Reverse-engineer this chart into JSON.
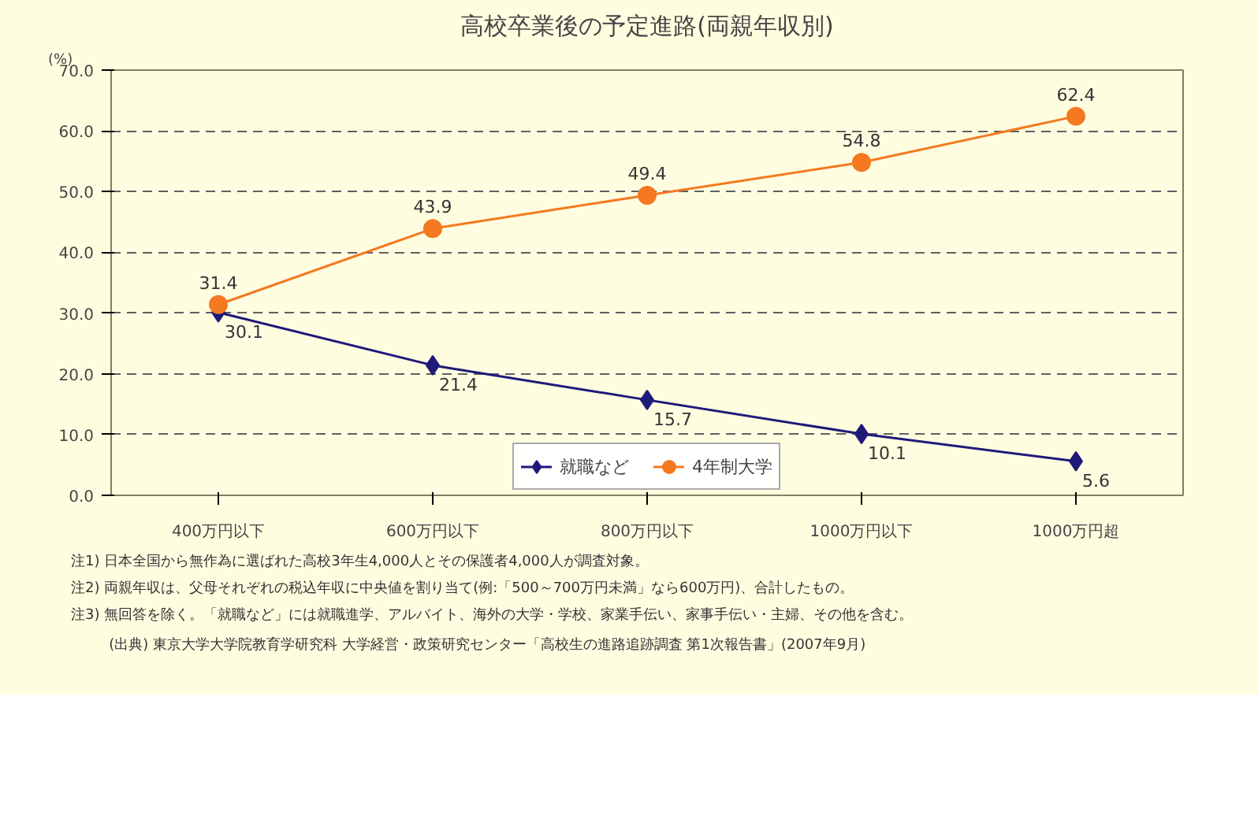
{
  "chart_data": {
    "type": "line",
    "title": "高校卒業後の予定進路(両親年収別)",
    "ylabel": "(%)",
    "categories": [
      "400万円以下",
      "600万円以下",
      "800万円以下",
      "1000万円以下",
      "1000万円超"
    ],
    "series": [
      {
        "name": "就職など",
        "color": "#1f1a7a",
        "marker": "diamond",
        "values": [
          30.1,
          21.4,
          15.7,
          10.1,
          5.6
        ]
      },
      {
        "name": "4年制大学",
        "color": "#f47920",
        "marker": "circle",
        "values": [
          31.4,
          43.9,
          49.4,
          54.8,
          62.4
        ]
      }
    ],
    "ylim": [
      0,
      70
    ],
    "yticks": [
      {
        "value": 0,
        "label": "0.0"
      },
      {
        "value": 10,
        "label": "10.0"
      },
      {
        "value": 20,
        "label": "20.0"
      },
      {
        "value": 30,
        "label": "30.0"
      },
      {
        "value": 40,
        "label": "40.0"
      },
      {
        "value": 50,
        "label": "50.0"
      },
      {
        "value": 60,
        "label": "60.0"
      },
      {
        "value": 70,
        "label": "70.0"
      }
    ],
    "grid": "y",
    "legend": "bottom",
    "data_labels": true,
    "annotations": [
      "注1) 日本全国から無作為に選ばれた高校3年生4,000人とその保護者4,000人が調査対象。",
      "注2) 両親年収は、父母それぞれの税込年収に中央値を割り当て(例:「500～700万円未満」なら600万円)、合計したもの。",
      "注3) 無回答を除く。「就職など」には就職進学、アルバイト、海外の大学・学校、家業手伝い、家事手伝い・主婦、その他を含む。",
      "(出典) 東京大学大学院教育学研究科 大学経営・政策研究センター「高校生の進路追跡調査 第1次報告書」(2007年9月)"
    ]
  }
}
